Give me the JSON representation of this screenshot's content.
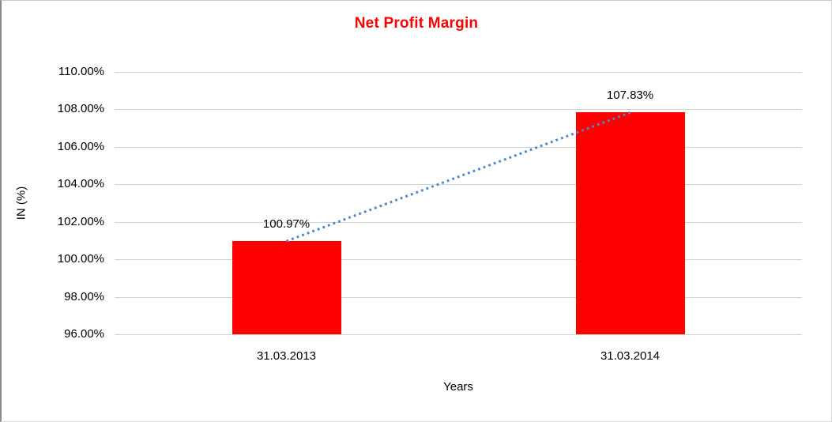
{
  "chart_data": {
    "type": "bar",
    "title": "Net Profit Margin",
    "title_color": "#ff0000",
    "xlabel": "Years",
    "ylabel": "IN (%)",
    "categories": [
      "31.03.2013",
      "31.03.2014"
    ],
    "series": [
      {
        "name": "Net Profit Margin",
        "type": "bar",
        "values": [
          100.97,
          107.83
        ],
        "data_labels": [
          "100.97%",
          "107.83%"
        ],
        "color": "#ff0000"
      },
      {
        "name": "trend",
        "type": "dotted-line",
        "values": [
          100.97,
          107.83
        ],
        "color": "#4e87c7"
      }
    ],
    "ylim": [
      96,
      110
    ],
    "ytick_step": 2,
    "ytick_labels": [
      "96.00%",
      "98.00%",
      "100.00%",
      "102.00%",
      "104.00%",
      "106.00%",
      "108.00%",
      "110.00%"
    ],
    "grid": true,
    "gridline_color": "#d3d3d3",
    "legend": "none",
    "background": "#ffffff"
  }
}
